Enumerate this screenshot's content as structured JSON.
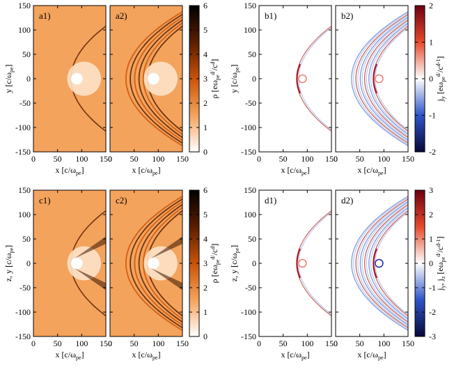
{
  "chart_data": [
    {
      "type": "heatmap",
      "group": "density",
      "panels": [
        "a1)",
        "a2)"
      ],
      "xlabel": "x [c/ω",
      "xlabel_sub": "pe",
      "xlabel_end": "]",
      "ylabel": "y [c/ω",
      "ylabel_sub": "pe",
      "ylabel_end": "]",
      "xticks": [
        0,
        50,
        100,
        150
      ],
      "yticks": [
        150,
        100,
        50,
        0,
        -50,
        -100,
        -150
      ],
      "xlim": [
        0,
        150
      ],
      "ylim": [
        -150,
        150
      ],
      "colorbar": {
        "label_main": "ρ [eω",
        "label_sub": "pe",
        "label_sup": "d/",
        "label_mid": "/c",
        "label_sup2": "d",
        "label_end": "]",
        "ticks": [
          0,
          1,
          2,
          3,
          4,
          5,
          6
        ],
        "range": [
          0,
          6
        ],
        "colormap": [
          "#ffffff",
          "#f3a35c",
          "#c9530a",
          "#5a1e00",
          "#000000"
        ]
      }
    },
    {
      "type": "heatmap",
      "group": "current",
      "panels": [
        "b1)",
        "b2)"
      ],
      "xlabel": "x [c/ω",
      "xlabel_sub": "pe",
      "xlabel_end": "]",
      "ylabel": "y [c/ω",
      "ylabel_sub": "pe",
      "ylabel_end": "]",
      "xticks": [
        0,
        50,
        100,
        150
      ],
      "yticks": [
        150,
        100,
        50,
        0,
        -50,
        -100,
        -150
      ],
      "xlim": [
        0,
        150
      ],
      "ylim": [
        -150,
        150
      ],
      "colorbar": {
        "label_main": "j",
        "label_sub": "y",
        "label_mid": " [eω",
        "label_sub2": "pe",
        "label_sup": "d/",
        "label_mid2": "/c",
        "label_sup2": "d-1",
        "label_end": "]",
        "ticks": [
          -2,
          -1,
          0,
          1,
          2
        ],
        "range": [
          -2,
          2
        ],
        "colormap": [
          "#08083a",
          "#2d55c8",
          "#ffffff",
          "#e64a2c",
          "#6d0010"
        ]
      }
    },
    {
      "type": "heatmap",
      "group": "density",
      "panels": [
        "c1)",
        "c2)"
      ],
      "xlabel": "x [c/ω",
      "xlabel_sub": "pe",
      "xlabel_end": "]",
      "ylabel": "z, y [c/ω",
      "ylabel_sub": "pe",
      "ylabel_end": "]",
      "xticks": [
        0,
        50,
        100,
        150
      ],
      "yticks": [
        150,
        100,
        50,
        0,
        -50,
        -100,
        -150
      ],
      "xlim": [
        0,
        150
      ],
      "ylim": [
        -150,
        150
      ],
      "colorbar": {
        "label_main": "ρ [eω",
        "label_sub": "pe",
        "label_sup": "d/",
        "label_mid": "/c",
        "label_sup2": "d",
        "label_end": "]",
        "ticks": [
          0,
          1,
          2,
          3,
          4,
          5,
          6
        ],
        "range": [
          0,
          6
        ],
        "colormap": [
          "#ffffff",
          "#f3a35c",
          "#c9530a",
          "#5a1e00",
          "#000000"
        ]
      }
    },
    {
      "type": "heatmap",
      "group": "current",
      "panels": [
        "d1)",
        "d2)"
      ],
      "xlabel": "x [c/ω",
      "xlabel_sub": "pe",
      "xlabel_end": "]",
      "ylabel": "z, y [c/ω",
      "ylabel_sub": "pe",
      "ylabel_end": "]",
      "xticks": [
        0,
        50,
        100,
        150
      ],
      "yticks": [
        150,
        100,
        50,
        0,
        -50,
        -100,
        -150
      ],
      "xlim": [
        0,
        150
      ],
      "ylim": [
        -150,
        150
      ],
      "colorbar": {
        "label_main": "j",
        "label_sub": "y",
        "label_mid": ", j",
        "label_sub_b": "z",
        "label_mid_b": " [eω",
        "label_sub2": "pe",
        "label_sup": "d/",
        "label_mid2": "/c",
        "label_sup2": "d-1",
        "label_end": "]",
        "ticks": [
          -3,
          -2,
          -1,
          0,
          1,
          2,
          3
        ],
        "range": [
          -3,
          3
        ],
        "colormap": [
          "#08083a",
          "#2d55c8",
          "#ffffff",
          "#e64a2c",
          "#6d0010"
        ]
      }
    }
  ]
}
